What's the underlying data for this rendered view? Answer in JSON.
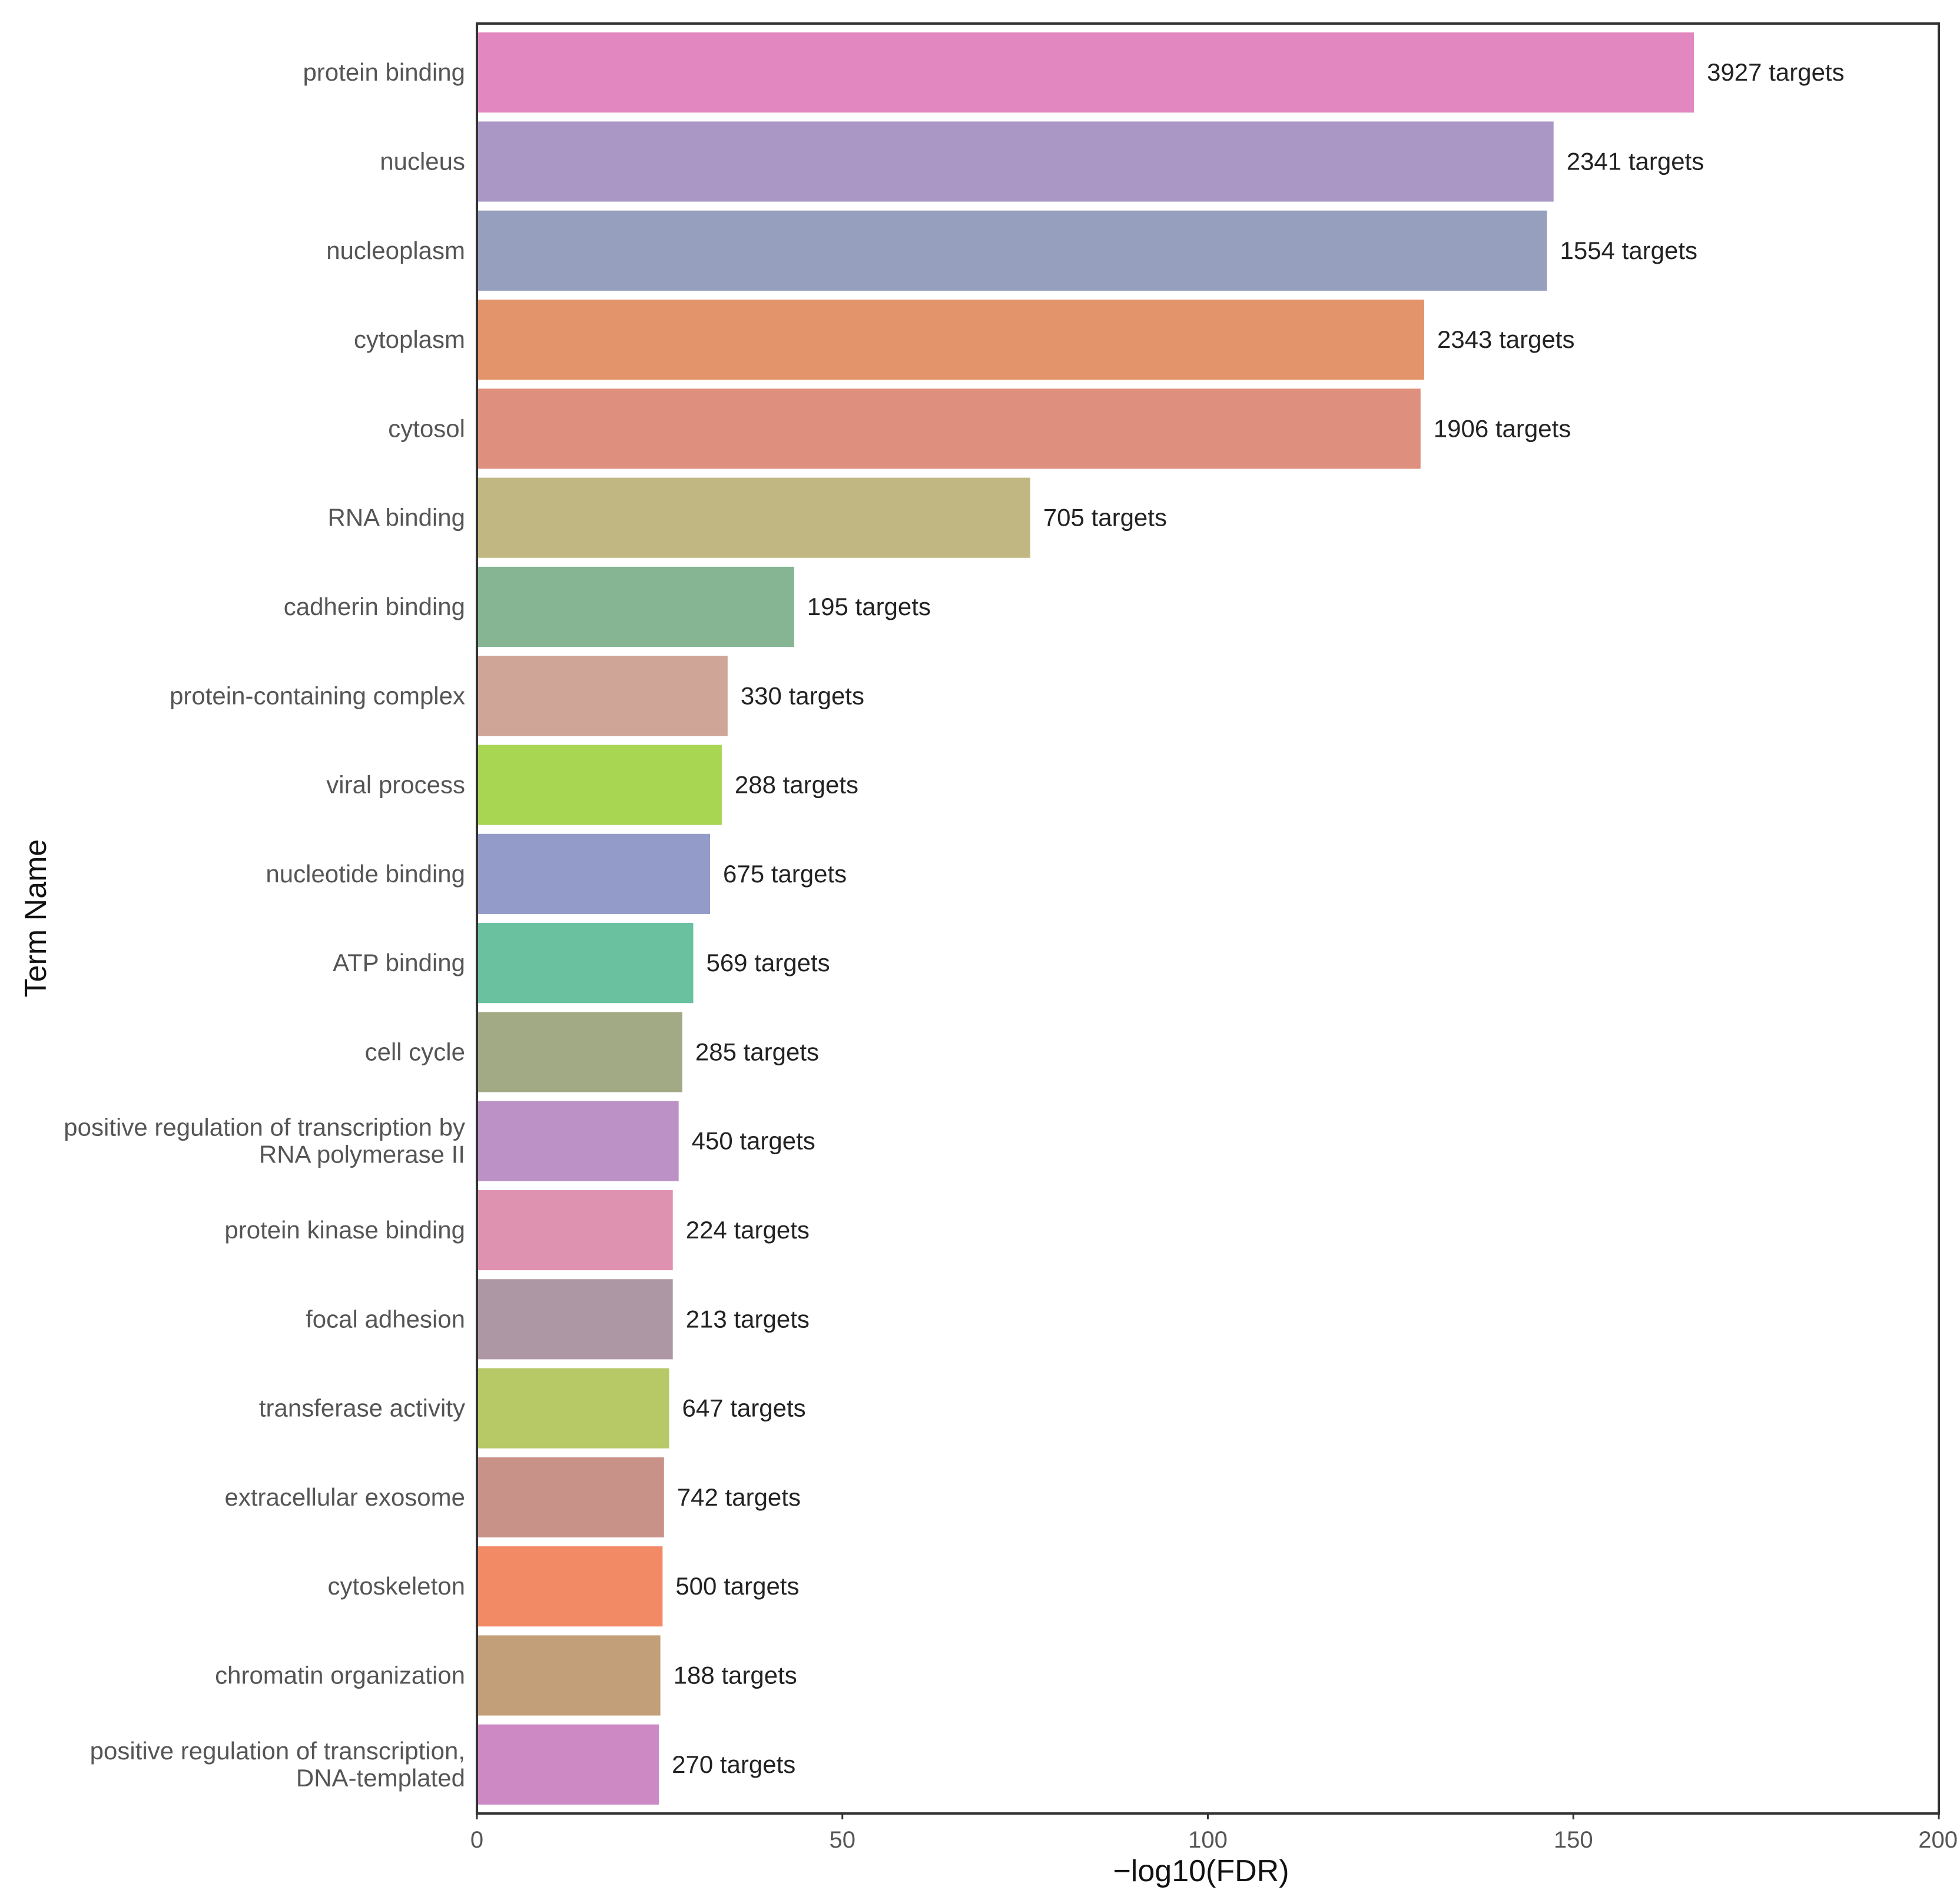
{
  "chart_data": {
    "type": "bar",
    "orientation": "horizontal",
    "xlabel": "−log10(FDR)",
    "ylabel": "Term Name",
    "xlim": [
      0,
      200
    ],
    "xticks": [
      "0",
      "50",
      "100",
      "150",
      "200"
    ],
    "grid": false,
    "legend": "none",
    "categories": [
      "protein binding",
      "nucleus",
      "nucleoplasm",
      "cytoplasm",
      "cytosol",
      "RNA binding",
      "cadherin binding",
      "protein-containing complex",
      "viral process",
      "nucleotide binding",
      "ATP binding",
      "cell cycle",
      "positive regulation of transcription by RNA polymerase II",
      "protein kinase binding",
      "focal adhesion",
      "transferase activity",
      "extracellular exosome",
      "cytoskeleton",
      "chromatin organization",
      "positive regulation of transcription, DNA-templated"
    ],
    "category_lines": [
      [
        "protein binding"
      ],
      [
        "nucleus"
      ],
      [
        "nucleoplasm"
      ],
      [
        "cytoplasm"
      ],
      [
        "cytosol"
      ],
      [
        "RNA binding"
      ],
      [
        "cadherin binding"
      ],
      [
        "protein-containing complex"
      ],
      [
        "viral process"
      ],
      [
        "nucleotide binding"
      ],
      [
        "ATP binding"
      ],
      [
        "cell cycle"
      ],
      [
        "positive regulation of transcription by",
        "RNA polymerase II"
      ],
      [
        "protein kinase binding"
      ],
      [
        "focal adhesion"
      ],
      [
        "transferase activity"
      ],
      [
        "extracellular exosome"
      ],
      [
        "cytoskeleton"
      ],
      [
        "chromatin organization"
      ],
      [
        "positive regulation of transcription,",
        "DNA-templated"
      ]
    ],
    "values": [
      166.5,
      147.3,
      146.4,
      129.6,
      129.1,
      75.7,
      43.4,
      34.3,
      33.5,
      31.9,
      29.6,
      28.1,
      27.6,
      26.8,
      26.8,
      26.3,
      25.6,
      25.4,
      25.1,
      24.9
    ],
    "value_labels": [
      "3927 targets",
      "2341 targets",
      "1554 targets",
      "2343 targets",
      "1906 targets",
      "705 targets",
      "195 targets",
      "330 targets",
      "288 targets",
      "675 targets",
      "569 targets",
      "285 targets",
      "450 targets",
      "224 targets",
      "213 targets",
      "647 targets",
      "742 targets",
      "500 targets",
      "188 targets",
      "270 targets"
    ],
    "colors": [
      "#e287bf",
      "#aa97c6",
      "#979fbf",
      "#e3946a",
      "#df8f7d",
      "#c1b782",
      "#85b593",
      "#cfa597",
      "#a8d653",
      "#939bc8",
      "#69c1a0",
      "#a2a985",
      "#bc91c6",
      "#df92b0",
      "#ae97a4",
      "#b7c867",
      "#c99289",
      "#f28a66",
      "#c29f78",
      "#cd89c4"
    ]
  }
}
